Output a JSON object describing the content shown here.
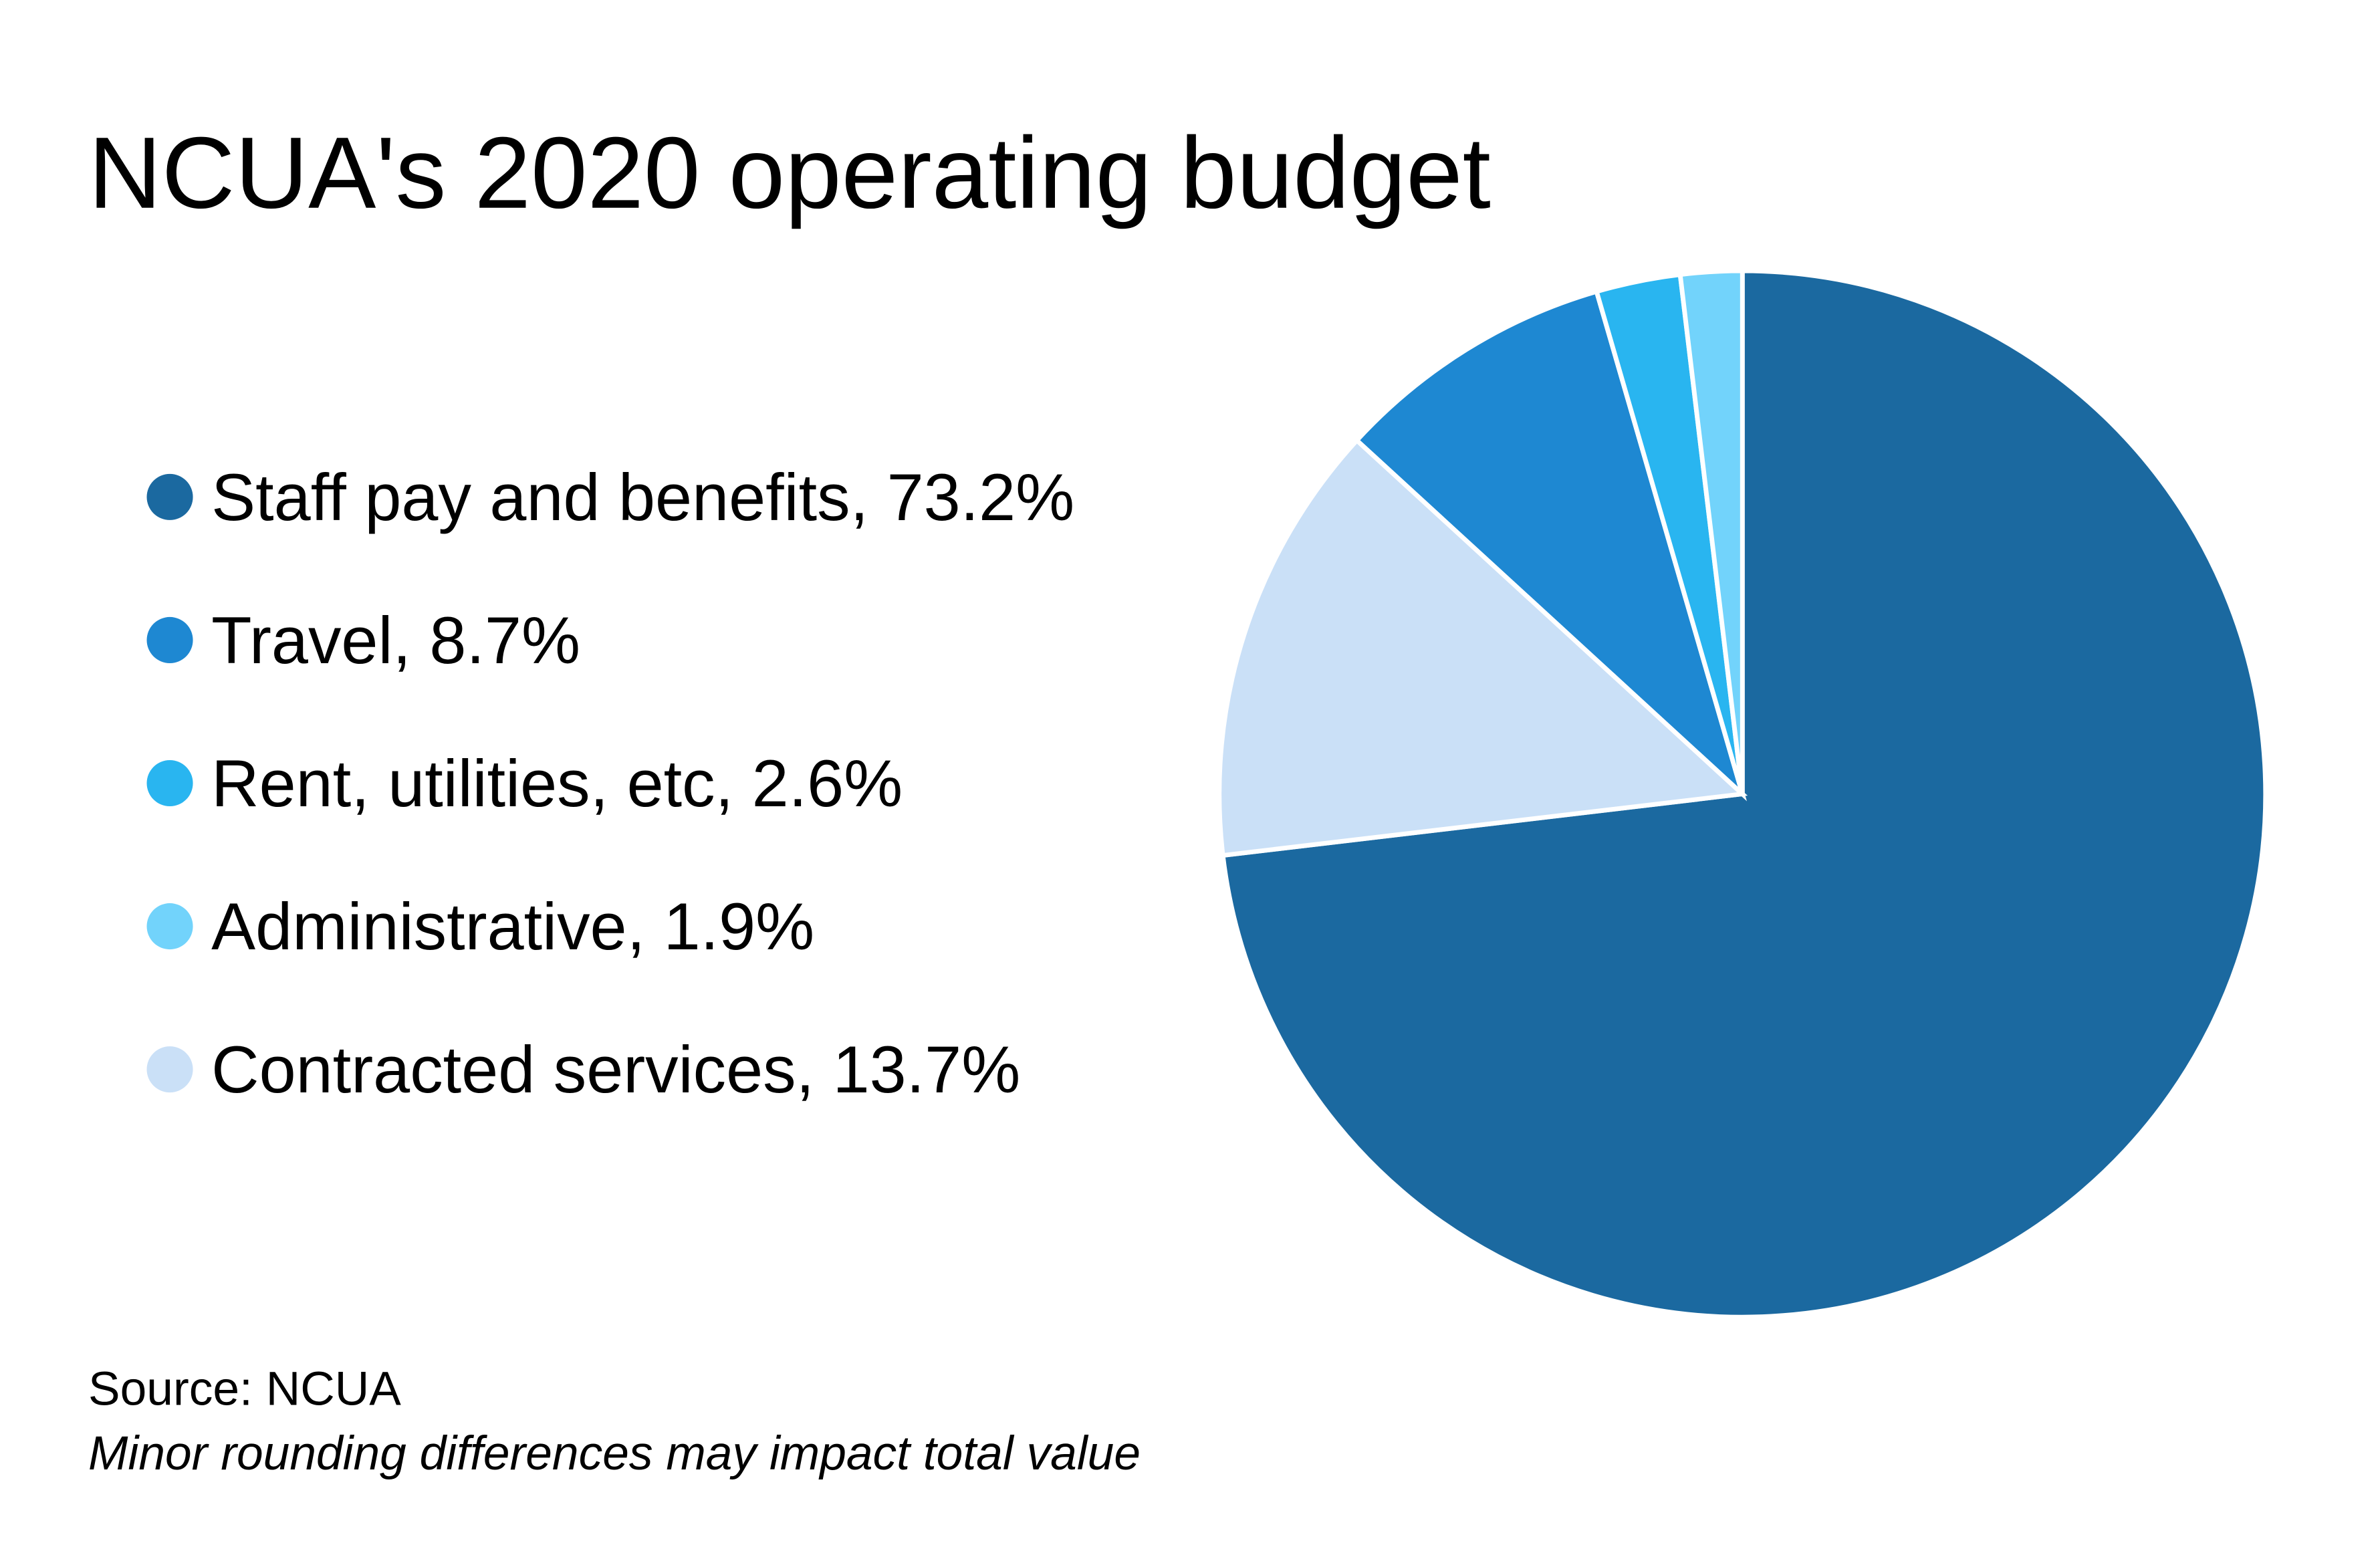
{
  "chart_data": {
    "type": "pie",
    "title": "NCUA's 2020 operating budget",
    "slices": [
      {
        "label": "Staff pay and benefits, 73.2%",
        "name": "Staff pay and benefits",
        "value": 73.2,
        "color": "#1b69a0"
      },
      {
        "label": "Contracted services, 13.7%",
        "name": "Contracted services",
        "value": 13.7,
        "color": "#cae0f7"
      },
      {
        "label": "Travel, 8.7%",
        "name": "Travel",
        "value": 8.7,
        "color": "#1e88d2"
      },
      {
        "label": "Rent, utilities, etc, 2.6%",
        "name": "Rent, utilities, etc",
        "value": 2.6,
        "color": "#29b5f0"
      },
      {
        "label": "Administrative, 1.9%",
        "name": "Administrative",
        "value": 1.9,
        "color": "#72d3fb"
      }
    ],
    "legend_order": [
      0,
      2,
      3,
      4,
      1
    ],
    "legend_placement": "left",
    "source": "Source: NCUA",
    "note": "Minor rounding differences may impact total value"
  }
}
